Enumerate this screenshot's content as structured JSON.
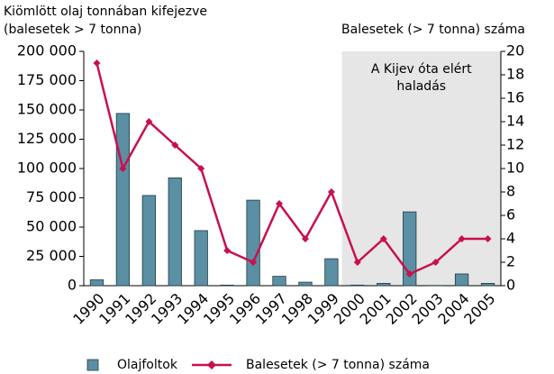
{
  "chart_data": {
    "type": "bar_line",
    "y_axis_label": [
      "Kiömlött olaj tonnában kifejezve",
      "(balesetek > 7 tonna)"
    ],
    "y2_axis_label": "Balesetek  (> 7 tonna) száma",
    "categories": [
      "1990",
      "1991",
      "1992",
      "1993",
      "1994",
      "1995",
      "1996",
      "1997",
      "1998",
      "1999",
      "2000",
      "2001",
      "2002",
      "2003",
      "2004",
      "2005"
    ],
    "series": [
      {
        "name": "Olajfoltok",
        "type": "bar",
        "color": "#5b8fa3",
        "values": [
          5000,
          147000,
          77000,
          92000,
          47000,
          500,
          73000,
          8000,
          3000,
          23000,
          500,
          2000,
          63000,
          200,
          10000,
          2000
        ]
      },
      {
        "name": "Balesetek (> 7 tonna) száma",
        "type": "line",
        "axis": "y2",
        "color": "#c8104f",
        "values": [
          19,
          10,
          14,
          12,
          10,
          3,
          2,
          7,
          4,
          8,
          2,
          4,
          1,
          2,
          4,
          4
        ]
      }
    ],
    "ylim": [
      0,
      200000
    ],
    "yticks": [
      {
        "value": 0,
        "label": "0"
      },
      {
        "value": 25000,
        "label": "25 000"
      },
      {
        "value": 50000,
        "label": "50 000"
      },
      {
        "value": 75000,
        "label": "75 000"
      },
      {
        "value": 100000,
        "label": "100 000"
      },
      {
        "value": 125000,
        "label": "125 000"
      },
      {
        "value": 150000,
        "label": "150 000"
      },
      {
        "value": 175000,
        "label": "175 000"
      },
      {
        "value": 200000,
        "label": "200 000"
      }
    ],
    "y2lim": [
      0,
      20
    ],
    "y2ticks": [
      0,
      2,
      4,
      6,
      8,
      10,
      12,
      14,
      16,
      18,
      20
    ],
    "highlight": {
      "from": "2000",
      "to": "2005",
      "label": [
        "A Kijev óta elért",
        "haladás"
      ]
    },
    "legend": "bottom"
  }
}
